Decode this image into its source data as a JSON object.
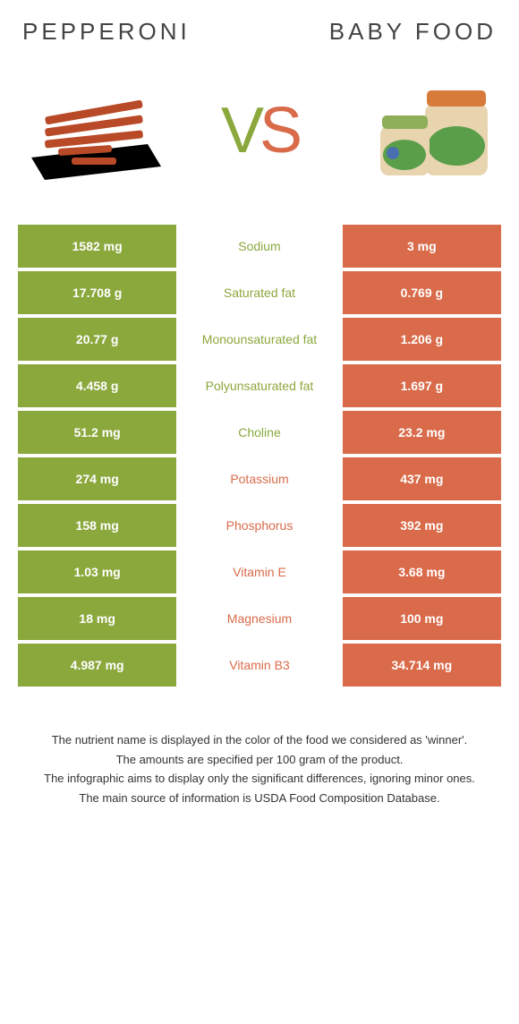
{
  "header": {
    "left_title": "Pepperoni",
    "right_title": "Baby food"
  },
  "vs": {
    "v": "V",
    "s": "S"
  },
  "colors": {
    "green": "#8ba83d",
    "orange": "#d96b4a",
    "green_text": "#8ba83d",
    "orange_text": "#d96b4a",
    "neutral_left": "#e0e0e0",
    "neutral_right": "#e0e0e0"
  },
  "rows": [
    {
      "label": "Sodium",
      "left": "1582 mg",
      "right": "3 mg",
      "winner": "left"
    },
    {
      "label": "Saturated fat",
      "left": "17.708 g",
      "right": "0.769 g",
      "winner": "left"
    },
    {
      "label": "Monounsaturated fat",
      "left": "20.77 g",
      "right": "1.206 g",
      "winner": "left"
    },
    {
      "label": "Polyunsaturated fat",
      "left": "4.458 g",
      "right": "1.697 g",
      "winner": "left"
    },
    {
      "label": "Choline",
      "left": "51.2 mg",
      "right": "23.2 mg",
      "winner": "left"
    },
    {
      "label": "Potassium",
      "left": "274 mg",
      "right": "437 mg",
      "winner": "right"
    },
    {
      "label": "Phosphorus",
      "left": "158 mg",
      "right": "392 mg",
      "winner": "right"
    },
    {
      "label": "Vitamin E",
      "left": "1.03 mg",
      "right": "3.68 mg",
      "winner": "right"
    },
    {
      "label": "Magnesium",
      "left": "18 mg",
      "right": "100 mg",
      "winner": "right"
    },
    {
      "label": "Vitamin B3",
      "left": "4.987 mg",
      "right": "34.714 mg",
      "winner": "right"
    }
  ],
  "footer": {
    "line1": "The nutrient name is displayed in the color of the food we considered as 'winner'.",
    "line2": "The amounts are specified per 100 gram of the product.",
    "line3": "The infographic aims to display only the significant differences, ignoring minor ones.",
    "line4": "The main source of information is USDA Food Composition Database."
  }
}
